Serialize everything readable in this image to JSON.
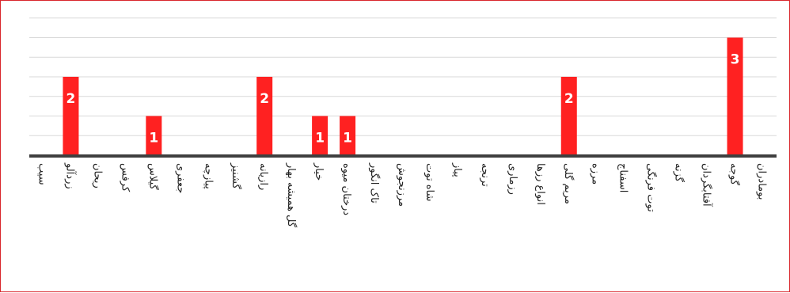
{
  "chart_data": {
    "type": "bar",
    "categories": [
      "سیب",
      "زردآلو",
      "ریحان",
      "کرفس",
      "گیلاس",
      "جعفری",
      "پیازچه",
      "گشنیز",
      "رازیانه",
      "گل همیشه بهار",
      "خیار",
      "درختان میوه",
      "تاک انگور",
      "مرزنجوش",
      "شاه توت",
      "پیاز",
      "ترنجه",
      "رزماری",
      "انواع رزها",
      "مریم گلی",
      "مرزه",
      "اسفناج",
      "توت فرنگی",
      "گزنه",
      "آفتابگردان",
      "گوجه",
      "بومادران"
    ],
    "values": [
      0,
      2,
      0,
      0,
      1,
      0,
      0,
      0,
      2,
      0,
      1,
      1,
      0,
      0,
      0,
      0,
      0,
      0,
      0,
      2,
      0,
      0,
      0,
      0,
      0,
      3,
      0
    ],
    "ylim": [
      0,
      3.5
    ],
    "grid": true,
    "data_labels": true,
    "bar_color": "#ff2121",
    "axis_color": "#3f3f3f",
    "grid_color": "#d9d9d9",
    "border_color": "#d9262c"
  }
}
